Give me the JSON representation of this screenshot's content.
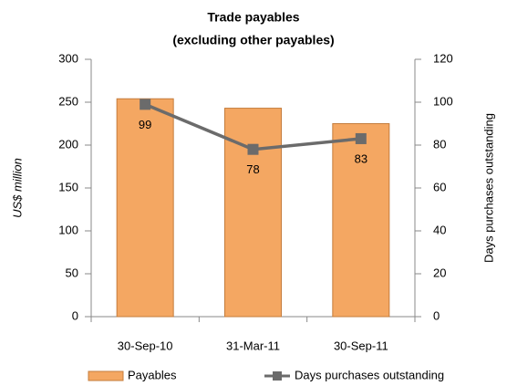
{
  "chart_data": {
    "type": "bar_line",
    "title": "Trade payables",
    "subtitle": "(excluding other payables)",
    "ylabel": "US$ million",
    "y2label": "Days purchases outstanding",
    "categories": [
      "30-Sep-10",
      "31-Mar-11",
      "30-Sep-11"
    ],
    "series": [
      {
        "name": "Payables",
        "type": "bar",
        "color": "#f4a762",
        "values": [
          254,
          243,
          225
        ]
      },
      {
        "name": "Days purchases outstanding",
        "type": "line",
        "axis": "y2",
        "color": "#6b6b6b",
        "values": [
          99,
          78,
          83
        ]
      }
    ],
    "ylim": [
      0,
      300
    ],
    "yticks": [
      0,
      50,
      100,
      150,
      200,
      250,
      300
    ],
    "y2lim": [
      0,
      120
    ],
    "y2ticks": [
      0,
      20,
      40,
      60,
      80,
      100,
      120
    ]
  }
}
